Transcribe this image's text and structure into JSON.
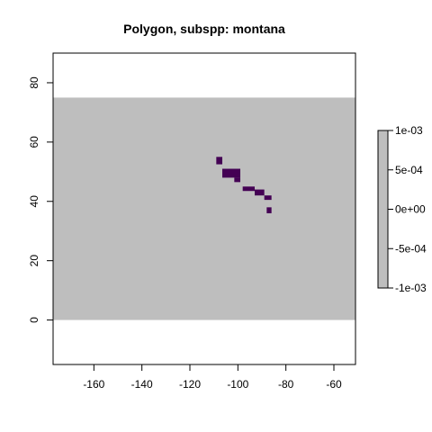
{
  "chart_data": {
    "type": "heatmap",
    "title": "Polygon, subspp: montana",
    "xlabel": "",
    "ylabel": "",
    "xlim": [
      -177,
      -51
    ],
    "ylim": [
      -15,
      90
    ],
    "x_ticks": [
      -160,
      -140,
      -120,
      -100,
      -80,
      -60
    ],
    "y_ticks": [
      0,
      20,
      40,
      60,
      80
    ],
    "x_tick_labels": [
      "-160",
      "-140",
      "-120",
      "-100",
      "-80",
      "-60"
    ],
    "y_tick_labels": [
      "0",
      "20",
      "40",
      "60",
      "80"
    ],
    "raster_extent": {
      "xmin": -177,
      "xmax": -51,
      "ymin": 0,
      "ymax": 75
    },
    "background_value": 0,
    "presence_cells": [
      {
        "x0": -109,
        "x1": -106.5,
        "y0": 52.5,
        "y1": 55
      },
      {
        "x0": -106.5,
        "x1": -99,
        "y0": 48,
        "y1": 51
      },
      {
        "x0": -101.5,
        "x1": -99,
        "y0": 46.5,
        "y1": 48
      },
      {
        "x0": -98,
        "x1": -93,
        "y0": 43.5,
        "y1": 45
      },
      {
        "x0": -93,
        "x1": -89,
        "y0": 42,
        "y1": 44
      },
      {
        "x0": -89,
        "x1": -86,
        "y0": 40.5,
        "y1": 42
      },
      {
        "x0": -88,
        "x1": -86,
        "y0": 36,
        "y1": 38
      }
    ],
    "colors": {
      "background": "#bebebe",
      "presence": "#440154"
    },
    "colorbar": {
      "min": -0.001,
      "max": 0.001,
      "ticks": [
        -0.001,
        -0.0005,
        0,
        0.0005,
        0.001
      ],
      "tick_labels": [
        "-1e-03",
        "-5e-04",
        "0e+00",
        "5e-04",
        "1e-03"
      ],
      "color": "#bebebe"
    },
    "grid": false,
    "legend": "right"
  }
}
